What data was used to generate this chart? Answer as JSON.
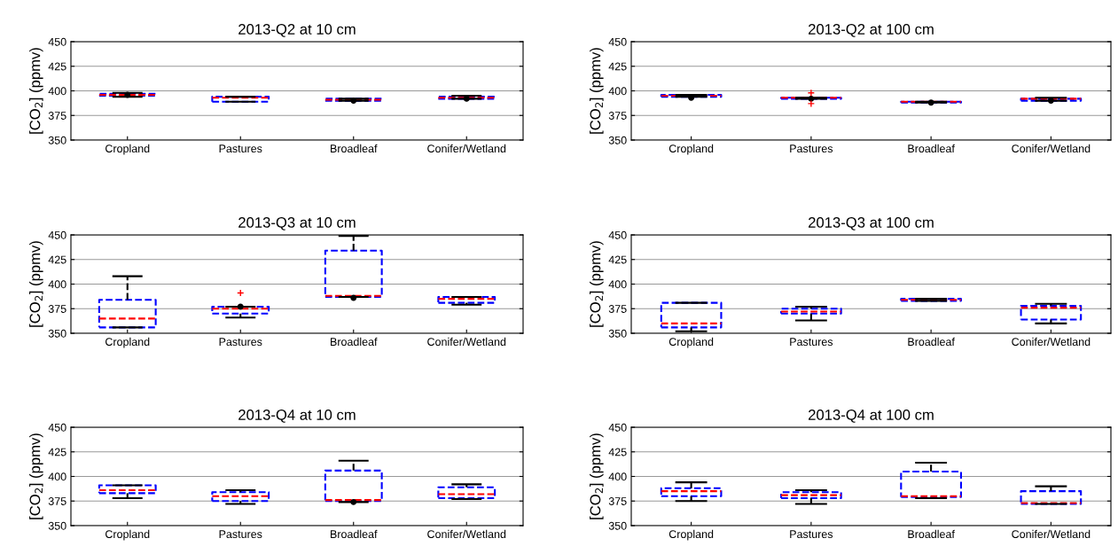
{
  "chart_data": [
    {
      "type": "box",
      "title": "2013-Q2 at 10 cm",
      "ylabel": "[CO$_{2}$] (ppmv)",
      "categories": [
        "Cropland",
        "Pastures",
        "Broadleaf",
        "Conifer/Wetland"
      ],
      "ylim": [
        350,
        450
      ],
      "yticks": [
        350,
        375,
        400,
        425,
        450
      ],
      "grid": "y",
      "boxes": [
        {
          "low": 394,
          "q1": 395,
          "median": 396,
          "q3": 397,
          "high": 398,
          "mean": 396
        },
        {
          "low": 389,
          "q1": 389,
          "median": 393,
          "q3": 394,
          "high": 394
        },
        {
          "low": 390,
          "q1": 390,
          "median": 391,
          "q3": 392,
          "high": 392,
          "mean": 390
        },
        {
          "low": 392,
          "q1": 392,
          "median": 393,
          "q3": 394,
          "high": 395,
          "mean": 392
        }
      ]
    },
    {
      "type": "box",
      "title": "2013-Q2 at 100 cm",
      "ylabel": "[CO$_{2}$] (ppmv)",
      "categories": [
        "Cropland",
        "Pastures",
        "Broadleaf",
        "Conifer/Wetland"
      ],
      "ylim": [
        350,
        450
      ],
      "yticks": [
        350,
        375,
        400,
        425,
        450
      ],
      "grid": "y",
      "boxes": [
        {
          "low": 394,
          "q1": 394,
          "median": 395,
          "q3": 396,
          "high": 396,
          "mean": 393
        },
        {
          "low": 392,
          "q1": 392,
          "median": 393,
          "q3": 393,
          "high": 393,
          "mean": 392,
          "outliers": [
            398,
            387
          ]
        },
        {
          "low": 388,
          "q1": 388,
          "median": 389,
          "q3": 389,
          "high": 389,
          "mean": 388
        },
        {
          "low": 390,
          "q1": 390,
          "median": 392,
          "q3": 392,
          "high": 393,
          "mean": 390
        }
      ]
    },
    {
      "type": "box",
      "title": "2013-Q3 at 10 cm",
      "ylabel": "[CO$_{2}$] (ppmv)",
      "categories": [
        "Cropland",
        "Pastures",
        "Broadleaf",
        "Conifer/Wetland"
      ],
      "ylim": [
        350,
        450
      ],
      "yticks": [
        350,
        375,
        400,
        425,
        450
      ],
      "grid": "y",
      "boxes": [
        {
          "low": 356,
          "q1": 356,
          "median": 365,
          "q3": 384,
          "high": 408
        },
        {
          "low": 366,
          "q1": 370,
          "median": 375,
          "q3": 377,
          "high": 377,
          "mean": 377,
          "outliers": [
            391
          ]
        },
        {
          "low": 387,
          "q1": 387,
          "median": 388,
          "q3": 434,
          "high": 449,
          "mean": 386
        },
        {
          "low": 379,
          "q1": 381,
          "median": 385,
          "q3": 387,
          "high": 387
        }
      ]
    },
    {
      "type": "box",
      "title": "2013-Q3 at 100 cm",
      "ylabel": "[CO$_{2}$] (ppmv)",
      "categories": [
        "Cropland",
        "Pastures",
        "Broadleaf",
        "Conifer/Wetland"
      ],
      "ylim": [
        350,
        450
      ],
      "yticks": [
        350,
        375,
        400,
        425,
        450
      ],
      "grid": "y",
      "boxes": [
        {
          "low": 352,
          "q1": 356,
          "median": 360,
          "q3": 381,
          "high": 381
        },
        {
          "low": 363,
          "q1": 370,
          "median": 372,
          "q3": 375,
          "high": 377
        },
        {
          "low": 383,
          "q1": 383,
          "median": 384,
          "q3": 385,
          "high": 385
        },
        {
          "low": 360,
          "q1": 364,
          "median": 376,
          "q3": 378,
          "high": 380
        }
      ]
    },
    {
      "type": "box",
      "title": "2013-Q4 at 10 cm",
      "ylabel": "[CO$_{2}$] (ppmv)",
      "categories": [
        "Cropland",
        "Pastures",
        "Broadleaf",
        "Conifer/Wetland"
      ],
      "ylim": [
        350,
        450
      ],
      "yticks": [
        350,
        375,
        400,
        425,
        450
      ],
      "grid": "y",
      "boxes": [
        {
          "low": 378,
          "q1": 383,
          "median": 386,
          "q3": 391,
          "high": 391
        },
        {
          "low": 372,
          "q1": 375,
          "median": 380,
          "q3": 384,
          "high": 386
        },
        {
          "low": 374,
          "q1": 375,
          "median": 376,
          "q3": 406,
          "high": 416,
          "mean": 374
        },
        {
          "low": 377,
          "q1": 378,
          "median": 382,
          "q3": 389,
          "high": 392
        }
      ]
    },
    {
      "type": "box",
      "title": "2013-Q4 at 100 cm",
      "ylabel": "[CO$_{2}$] (ppmv)",
      "categories": [
        "Cropland",
        "Pastures",
        "Broadleaf",
        "Conifer/Wetland"
      ],
      "ylim": [
        350,
        450
      ],
      "yticks": [
        350,
        375,
        400,
        425,
        450
      ],
      "grid": "y",
      "boxes": [
        {
          "low": 375,
          "q1": 380,
          "median": 385,
          "q3": 388,
          "high": 394
        },
        {
          "low": 372,
          "q1": 378,
          "median": 381,
          "q3": 384,
          "high": 386
        },
        {
          "low": 378,
          "q1": 379,
          "median": 380,
          "q3": 405,
          "high": 414
        },
        {
          "low": 372,
          "q1": 372,
          "median": 373,
          "q3": 385,
          "high": 390
        }
      ]
    }
  ]
}
